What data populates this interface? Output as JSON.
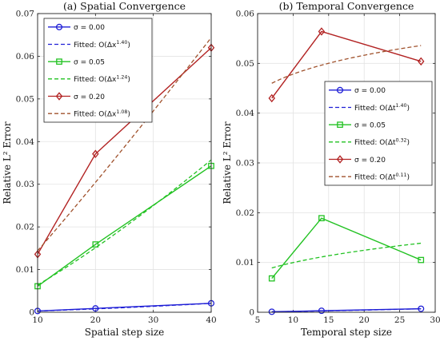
{
  "chart_data": [
    {
      "type": "line",
      "title": "(a) Spatial Convergence",
      "xlabel": "Spatial step size",
      "ylabel": "Relative L² Error",
      "xlim": [
        10,
        40
      ],
      "ylim": [
        0,
        0.07
      ],
      "xticks": [
        10,
        20,
        30,
        40
      ],
      "yticks": [
        0,
        0.01,
        0.02,
        0.03,
        0.04,
        0.05,
        0.06,
        0.07
      ],
      "xtick_labels": [
        "10",
        "20",
        "30",
        "40"
      ],
      "ytick_labels": [
        "0",
        "0.01",
        "0.02",
        "0.03",
        "0.04",
        "0.05",
        "0.06",
        "0.07"
      ],
      "grid": true,
      "legend_position": "top-left",
      "x": [
        10,
        20,
        40
      ],
      "series": [
        {
          "name": "σ = 0.00",
          "kind": "data",
          "marker": "circle",
          "color": "#1f1fd6",
          "values": [
            0.0003,
            0.0009,
            0.0021
          ]
        },
        {
          "name": "Fitted: O(Δx^1.40)",
          "kind": "fit",
          "color": "#1f1fd6",
          "exponent": 1.4,
          "values": [
            0.0003,
            0.0008,
            0.0021
          ]
        },
        {
          "name": "σ = 0.05",
          "kind": "data",
          "marker": "square",
          "color": "#22c222",
          "values": [
            0.0061,
            0.0159,
            0.0343
          ]
        },
        {
          "name": "Fitted: O(Δx^1.24)",
          "kind": "fit",
          "color": "#22c222",
          "exponent": 1.24,
          "values": [
            0.0064,
            0.0151,
            0.0357
          ]
        },
        {
          "name": "σ = 0.20",
          "kind": "data",
          "marker": "diamond",
          "color": "#b22222",
          "values": [
            0.0136,
            0.0371,
            0.062
          ]
        },
        {
          "name": "Fitted: O(Δx^1.08)",
          "kind": "fit",
          "color": "#a0522d",
          "exponent": 1.08,
          "values": [
            0.0144,
            0.0304,
            0.0673
          ]
        }
      ]
    },
    {
      "type": "line",
      "title": "(b) Temporal Convergence",
      "xlabel": "Temporal step size",
      "ylabel": "Relative L² Error",
      "xlim": [
        5,
        30
      ],
      "ylim": [
        0,
        0.06
      ],
      "xticks": [
        5,
        10,
        15,
        20,
        25,
        30
      ],
      "yticks": [
        0,
        0.01,
        0.02,
        0.03,
        0.04,
        0.05,
        0.06
      ],
      "xtick_labels": [
        "5",
        "10",
        "15",
        "20",
        "25",
        "30"
      ],
      "ytick_labels": [
        "0",
        "0.01",
        "0.02",
        "0.03",
        "0.04",
        "0.05",
        "0.06"
      ],
      "grid": true,
      "legend_position": "right",
      "x": [
        7,
        14,
        28
      ],
      "series": [
        {
          "name": "σ = 0.00",
          "kind": "data",
          "marker": "circle",
          "color": "#1f1fd6",
          "values": [
            0.0001,
            0.0003,
            0.0007
          ]
        },
        {
          "name": "Fitted: O(Δt^1.40)",
          "kind": "fit",
          "color": "#1f1fd6",
          "exponent": 1.4,
          "values": [
            0.0001,
            0.0003,
            0.0007
          ]
        },
        {
          "name": "σ = 0.05",
          "kind": "data",
          "marker": "square",
          "color": "#22c222",
          "values": [
            0.0068,
            0.0189,
            0.0105
          ]
        },
        {
          "name": "Fitted: O(Δt^0.32)",
          "kind": "fit",
          "color": "#22c222",
          "exponent": 0.32,
          "values": [
            0.0089,
            0.0112,
            0.0139
          ]
        },
        {
          "name": "σ = 0.20",
          "kind": "data",
          "marker": "diamond",
          "color": "#b22222",
          "values": [
            0.043,
            0.0564,
            0.0504
          ]
        },
        {
          "name": "Fitted: O(Δt^0.11)",
          "kind": "fit",
          "color": "#a0522d",
          "exponent": 0.11,
          "values": [
            0.046,
            0.0496,
            0.0538
          ]
        }
      ]
    }
  ]
}
